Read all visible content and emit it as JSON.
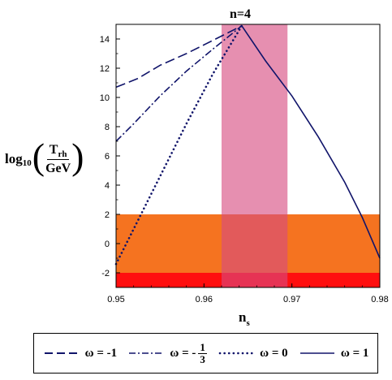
{
  "chart_data": {
    "type": "line",
    "title": "n=4",
    "xlabel": {
      "base": "n",
      "sub": "s"
    },
    "ylabel": {
      "prefix": "log",
      "prefix_sub": "10",
      "num": "T",
      "num_sub": "rh",
      "den": "GeV"
    },
    "xlim": [
      0.95,
      0.98
    ],
    "ylim": [
      -3,
      15
    ],
    "x_ticks": [
      "0.95",
      "0.96",
      "0.97",
      "0.98"
    ],
    "x_tick_values": [
      0.95,
      0.96,
      0.97,
      0.98
    ],
    "y_ticks": [
      "-2",
      "0",
      "2",
      "4",
      "6",
      "8",
      "10",
      "12",
      "14"
    ],
    "y_tick_values": [
      -2,
      0,
      2,
      4,
      6,
      8,
      10,
      12,
      14
    ],
    "bands": [
      {
        "orientation": "horizontal",
        "from": -3,
        "to": 2,
        "color": "#f57320"
      },
      {
        "orientation": "horizontal",
        "from": -3,
        "to": -2,
        "color": "#ff0f0f"
      },
      {
        "orientation": "vertical",
        "from": 0.962,
        "to": 0.9695,
        "color": "rgba(214,74,128,0.62)"
      }
    ],
    "series": [
      {
        "label": "ω = -1",
        "style": "dashed",
        "color": "#10146a",
        "points": [
          [
            0.95,
            10.7
          ],
          [
            0.9525,
            11.3
          ],
          [
            0.955,
            12.2
          ],
          [
            0.958,
            13.0
          ],
          [
            0.961,
            13.9
          ],
          [
            0.9643,
            14.9
          ]
        ]
      },
      {
        "label": "ω = -1/3",
        "style": "dashdot",
        "color": "#10146a",
        "points": [
          [
            0.95,
            7.0
          ],
          [
            0.952,
            8.2
          ],
          [
            0.955,
            10.1
          ],
          [
            0.958,
            11.8
          ],
          [
            0.961,
            13.3
          ],
          [
            0.9643,
            14.9
          ]
        ]
      },
      {
        "label": "ω = 0",
        "style": "dotted",
        "color": "#10146a",
        "points": [
          [
            0.95,
            -1.4
          ],
          [
            0.9525,
            1.6
          ],
          [
            0.955,
            4.6
          ],
          [
            0.958,
            8.2
          ],
          [
            0.961,
            11.6
          ],
          [
            0.9643,
            14.9
          ]
        ]
      },
      {
        "label": "ω = 1",
        "style": "solid",
        "color": "#10146a",
        "points": [
          [
            0.9643,
            14.9
          ],
          [
            0.967,
            12.5
          ],
          [
            0.97,
            10.1
          ],
          [
            0.973,
            7.3
          ],
          [
            0.976,
            4.2
          ],
          [
            0.978,
            1.8
          ],
          [
            0.98,
            -1.0
          ]
        ]
      }
    ],
    "legend": {
      "placement": "bottom",
      "items": [
        {
          "style": "dashed",
          "text": "ω = -1"
        },
        {
          "style": "dashdot",
          "text": "ω = -",
          "frac_num": "1",
          "frac_den": "3"
        },
        {
          "style": "dotted",
          "text": "ω = 0"
        },
        {
          "style": "solid",
          "text": "ω = 1"
        }
      ]
    }
  }
}
